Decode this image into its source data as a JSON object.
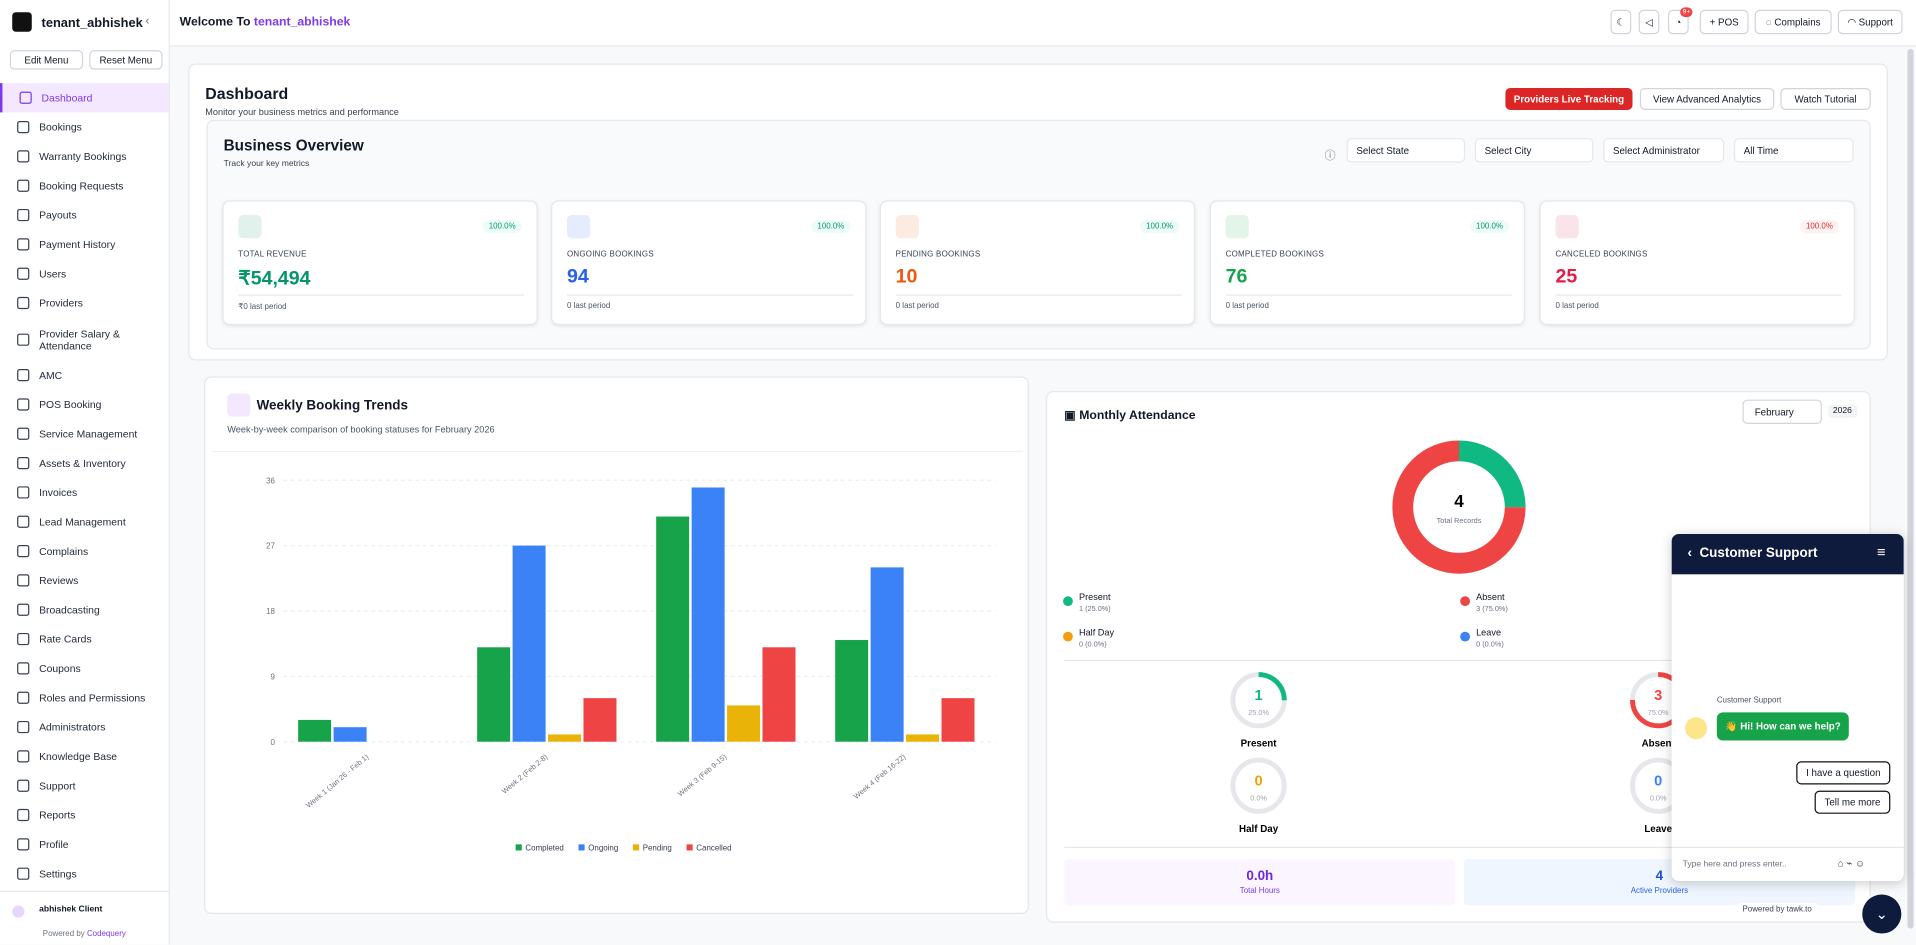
{
  "header": {
    "tenant": "tenant_abhishek",
    "welcome": "Welcome To",
    "welcome_name": "tenant_abhishek",
    "notification_badge": "9+",
    "buttons": [
      "POS",
      "Complains",
      "Support"
    ]
  },
  "sidebar": {
    "buttons": [
      "Edit Menu",
      "Reset Menu"
    ],
    "menu": [
      "Dashboard",
      "Bookings",
      "Warranty Bookings",
      "Booking Requests",
      "Payouts",
      "Payment History",
      "Users",
      "Providers",
      "Provider Salary & Attendance",
      "AMC",
      "POS Booking",
      "Service Management",
      "Assets & Inventory",
      "Invoices",
      "Lead Management",
      "Complains",
      "Reviews",
      "Broadcasting",
      "Rate Cards",
      "Coupons",
      "Roles and Permissions",
      "Administrators",
      "Knowledge Base",
      "Support",
      "Reports",
      "Profile",
      "Settings"
    ],
    "user": "abhishek Client",
    "footer": "Powered by",
    "footer_link": "Codequery"
  },
  "dashboard": {
    "title": "Dashboard",
    "subtitle": "Monitor your business metrics and performance",
    "actions": [
      "Providers Live Tracking",
      "View Advanced Analytics",
      "Watch Tutorial"
    ]
  },
  "overview": {
    "title": "Business Overview",
    "subtitle": "Track your key metrics",
    "filters": [
      "Select State",
      "Select City",
      "Select Administrator",
      "All Time"
    ],
    "cards": [
      {
        "label": "TOTAL REVENUE",
        "value": "₹54,494",
        "change": "100.0%",
        "previous": "₹0 last period",
        "color": "#059669"
      },
      {
        "label": "ONGOING BOOKINGS",
        "value": "94",
        "change": "100.0%",
        "previous": "0 last period",
        "color": "#2563eb"
      },
      {
        "label": "PENDING BOOKINGS",
        "value": "10",
        "change": "100.0%",
        "previous": "0 last period",
        "color": "#ea580c"
      },
      {
        "label": "COMPLETED BOOKINGS",
        "value": "76",
        "change": "100.0%",
        "previous": "0 last period",
        "color": "#16a34a"
      },
      {
        "label": "CANCELED BOOKINGS",
        "value": "25",
        "change": "100.0%",
        "previous": "0 last period",
        "color": "#e11d48"
      }
    ]
  },
  "weekly_trends": {
    "type": "bar",
    "title": "Weekly Booking Trends",
    "subtitle": "Week-by-week comparison of booking statuses for February 2026",
    "categories": [
      "Week 1 (Jan 26 - Feb 1)",
      "Week 2 (Feb 2-8)",
      "Week 3 (Feb 9-15)",
      "Week 4 (Feb 16-22)"
    ],
    "series": [
      {
        "name": "Completed",
        "color": "#16a34a",
        "values": [
          3,
          13,
          31,
          14
        ]
      },
      {
        "name": "Ongoing",
        "color": "#3b82f6",
        "values": [
          2,
          27,
          35,
          24
        ]
      },
      {
        "name": "Pending",
        "color": "#eab308",
        "values": [
          0,
          1,
          5,
          1
        ]
      },
      {
        "name": "Cancelled",
        "color": "#ef4444",
        "values": [
          0,
          6,
          13,
          6
        ]
      }
    ],
    "ylim": [
      0,
      36
    ],
    "yticks": [
      0,
      9,
      18,
      27,
      36
    ],
    "grid": true
  },
  "attendance": {
    "type": "pie",
    "title": "Monthly Attendance",
    "month": "February",
    "year": "2026",
    "total": "4",
    "total_label": "Total Records",
    "items": [
      {
        "name": "Present",
        "color": "#10b981",
        "count": 1,
        "legend": "1 (25.0%)",
        "percent": 25,
        "percent_label": "25.0%"
      },
      {
        "name": "Absent",
        "color": "#ef4444",
        "count": 3,
        "legend": "3 (75.0%)",
        "percent": 75,
        "percent_label": "75.0%"
      },
      {
        "name": "Half Day",
        "color": "#f59e0b",
        "count": 0,
        "legend": "0 (0.0%)",
        "percent": 0,
        "percent_label": "0.0%"
      },
      {
        "name": "Leave",
        "color": "#3b82f6",
        "count": 0,
        "legend": "0 (0.0%)",
        "percent": 0,
        "percent_label": "0.0%"
      }
    ],
    "hours": "0.0h",
    "hours_label": "Total Hours",
    "providers": "4",
    "providers_label": "Active Providers"
  },
  "chat": {
    "title": "Customer Support",
    "sender": "Customer Support",
    "message": "👋 Hi! How can we help?",
    "options": [
      "I have a question",
      "Tell me more"
    ],
    "placeholder": "Type here and press enter..",
    "powered": "Powered by tawk.to"
  }
}
